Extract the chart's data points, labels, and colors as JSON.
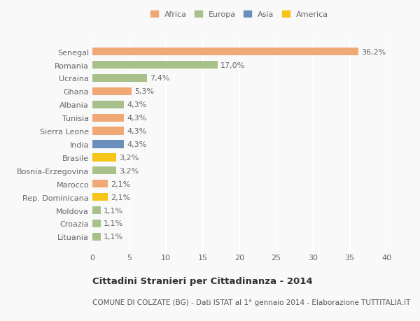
{
  "countries": [
    "Senegal",
    "Romania",
    "Ucraina",
    "Ghana",
    "Albania",
    "Tunisia",
    "Sierra Leone",
    "India",
    "Brasile",
    "Bosnia-Erzegovina",
    "Marocco",
    "Rep. Dominicana",
    "Moldova",
    "Croazia",
    "Lituania"
  ],
  "values": [
    36.2,
    17.0,
    7.4,
    5.3,
    4.3,
    4.3,
    4.3,
    4.3,
    3.2,
    3.2,
    2.1,
    2.1,
    1.1,
    1.1,
    1.1
  ],
  "labels": [
    "36,2%",
    "17,0%",
    "7,4%",
    "5,3%",
    "4,3%",
    "4,3%",
    "4,3%",
    "4,3%",
    "3,2%",
    "3,2%",
    "2,1%",
    "2,1%",
    "1,1%",
    "1,1%",
    "1,1%"
  ],
  "colors": [
    "#F0A875",
    "#A8C08A",
    "#A8C08A",
    "#F0A875",
    "#A8C08A",
    "#F0A875",
    "#F0A875",
    "#6A8FBD",
    "#F5C518",
    "#A8C08A",
    "#F0A875",
    "#F5C518",
    "#A8C08A",
    "#A8C08A",
    "#A8C08A"
  ],
  "legend_labels": [
    "Africa",
    "Europa",
    "Asia",
    "America"
  ],
  "legend_colors": [
    "#F0A875",
    "#A8C08A",
    "#6A8FBD",
    "#F5C518"
  ],
  "xlim": [
    0,
    40
  ],
  "xticks": [
    0,
    5,
    10,
    15,
    20,
    25,
    30,
    35,
    40
  ],
  "title_main": "Cittadini Stranieri per Cittadinanza - 2014",
  "title_sub": "COMUNE DI COLZATE (BG) - Dati ISTAT al 1° gennaio 2014 - Elaborazione TUTTITALIA.IT",
  "bg_color": "#f9f9f9",
  "bar_height": 0.6,
  "label_fontsize": 8,
  "tick_fontsize": 8,
  "title_fontsize": 9.5,
  "sub_fontsize": 7.5
}
